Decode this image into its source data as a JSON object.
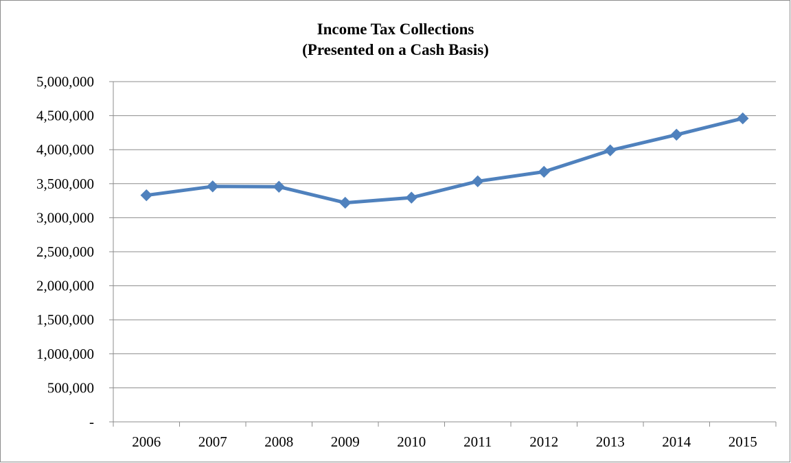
{
  "chart_data": {
    "type": "line",
    "title": "Income Tax Collections",
    "subtitle": "(Presented on a Cash Basis)",
    "xlabel": "",
    "ylabel": "",
    "categories": [
      "2006",
      "2007",
      "2008",
      "2009",
      "2010",
      "2011",
      "2012",
      "2013",
      "2014",
      "2015"
    ],
    "series": [
      {
        "values": [
          3330000,
          3460000,
          3455000,
          3220000,
          3295000,
          3535000,
          3675000,
          3990000,
          4220000,
          4460000
        ],
        "color": "#4F81BD"
      }
    ],
    "ylim": [
      0,
      5000000
    ],
    "yticks": [
      0,
      500000,
      1000000,
      1500000,
      2000000,
      2500000,
      3000000,
      3500000,
      4000000,
      4500000,
      5000000
    ],
    "ytick_labels": [
      "-",
      "500,000",
      "1,000,000",
      "1,500,000",
      "2,000,000",
      "2,500,000",
      "3,000,000",
      "3,500,000",
      "4,000,000",
      "4,500,000",
      "5,000,000"
    ],
    "grid": "horizontal",
    "legend": "none",
    "marker": "diamond"
  }
}
